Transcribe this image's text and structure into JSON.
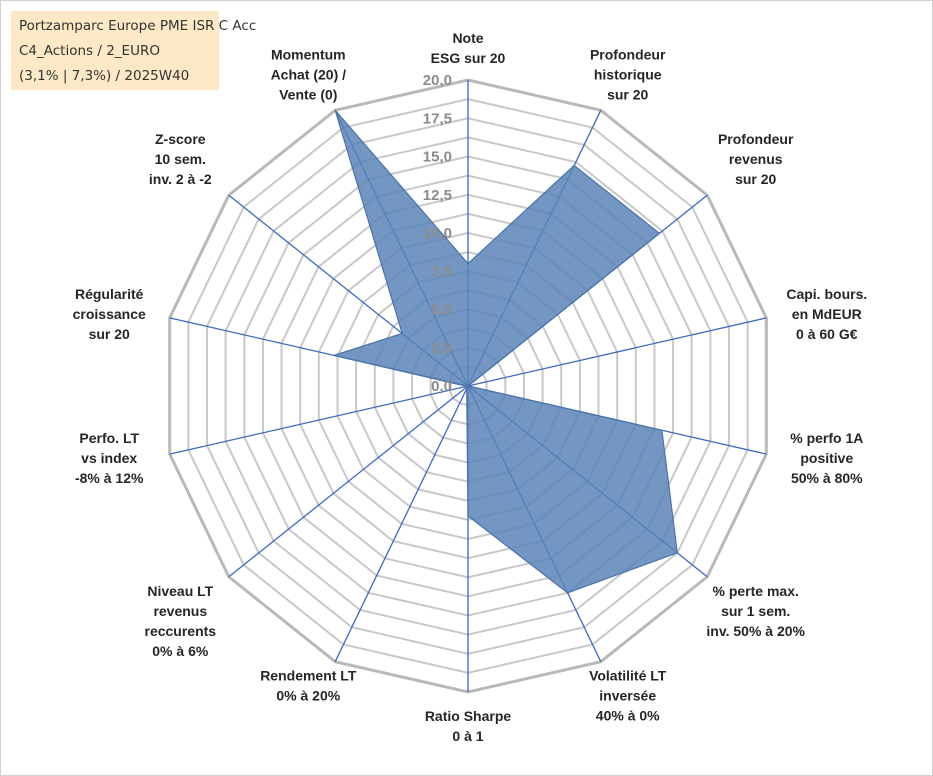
{
  "info_box": {
    "line1": "Portzamparc Europe PME ISR C Acc",
    "line2": "C4_Actions / 2_EURO",
    "line3": "(3,1% | 7,3%) / 2025W40"
  },
  "chart_data": {
    "type": "radar",
    "title": "",
    "rlim": [
      0,
      20
    ],
    "ticks": [
      "0,0",
      "2,5",
      "5,0",
      "7,5",
      "10,0",
      "12,5",
      "15,0",
      "17,5",
      "20,0"
    ],
    "tick_values": [
      0,
      2.5,
      5,
      7.5,
      10,
      12.5,
      15,
      17.5,
      20
    ],
    "grid_rings": 16,
    "axes": [
      [
        "Note",
        "ESG sur 20"
      ],
      [
        "Profondeur",
        "historique",
        "sur 20"
      ],
      [
        "Profondeur",
        "revenus",
        "sur 20"
      ],
      [
        "Capi. bours.",
        "en MdEUR",
        "0 à 60 G€"
      ],
      [
        "% perfo 1A",
        "positive",
        "50% à 80%"
      ],
      [
        "% perte max.",
        "sur 1 sem.",
        "inv. 50% à 20%"
      ],
      [
        "Volatilité LT",
        "inversée",
        "40% à 0%"
      ],
      [
        "Ratio Sharpe",
        "0 à 1"
      ],
      [
        "Rendement LT",
        "0% à 20%"
      ],
      [
        "Niveau LT",
        "revenus",
        "reccurents",
        "0% à 6%"
      ],
      [
        "Perfo. LT",
        "vs index",
        "-8% à 12%"
      ],
      [
        "Régularité",
        "croissance",
        "sur 20"
      ],
      [
        "Z-score",
        "10 sem.",
        "inv. 2 à -2"
      ],
      [
        "Momentum",
        "Achat (20) /",
        "Vente (0)"
      ]
    ],
    "series": [
      {
        "values": [
          8,
          16,
          16,
          0,
          13,
          17.5,
          15,
          8.5,
          0.2,
          0.1,
          0.1,
          9,
          5.5,
          20
        ],
        "color": "#5b84b8",
        "stroke": "#4a73aa"
      }
    ],
    "grid_color": "#c8c8c8",
    "outer_color": "#b9b9b9",
    "spoke_color": "#3a69c2"
  }
}
